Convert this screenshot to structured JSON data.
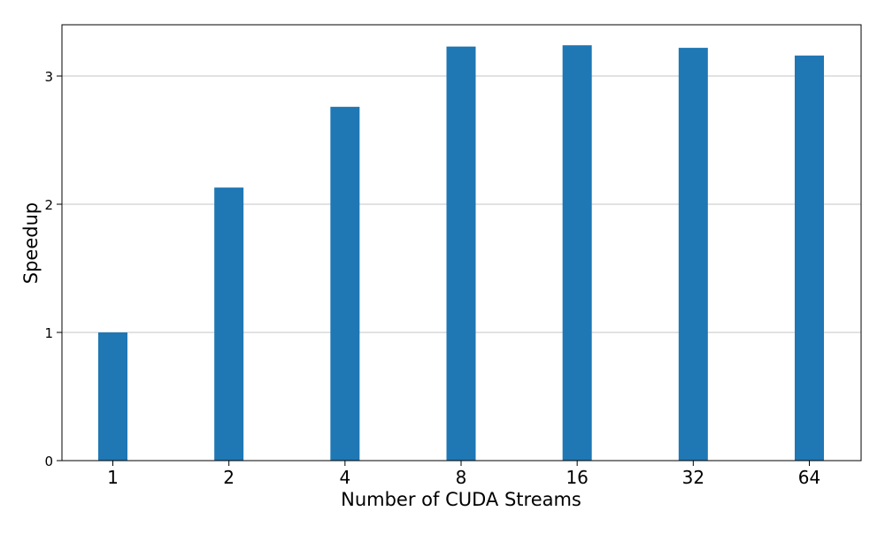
{
  "chart_data": {
    "type": "bar",
    "title": "",
    "xlabel": "Number of CUDA Streams",
    "ylabel": "Speedup",
    "categories": [
      "1",
      "2",
      "4",
      "8",
      "16",
      "32",
      "64"
    ],
    "values": [
      1.0,
      2.13,
      2.76,
      3.23,
      3.24,
      3.22,
      3.16
    ],
    "yticks": [
      0,
      1,
      2,
      3
    ],
    "ylim": [
      0,
      3.4
    ],
    "grid": "y-major",
    "legend": "none",
    "bar_color": "#1f77b4",
    "grid_color": "#b0b0b0",
    "axis_color": "#000000"
  }
}
